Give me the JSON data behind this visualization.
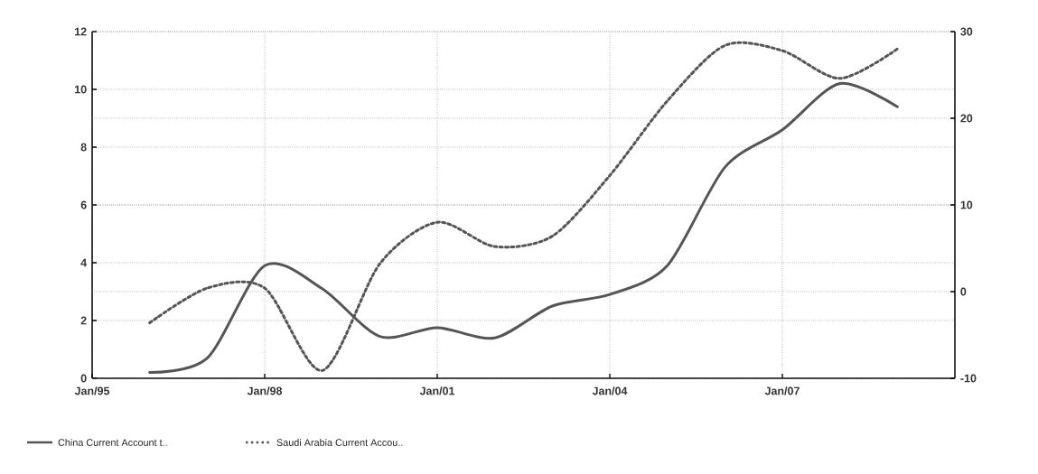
{
  "chart_data": {
    "type": "line",
    "x": [
      "1996-01",
      "1997-01",
      "1998-01",
      "1999-01",
      "2000-01",
      "2001-01",
      "2002-01",
      "2003-01",
      "2004-01",
      "2005-01",
      "2006-01",
      "2007-01",
      "2008-01",
      "2009-01"
    ],
    "series": [
      {
        "name": "China Current Account t..",
        "color": "#555555",
        "line_style": "solid",
        "values": [
          0.2,
          0.7,
          3.9,
          3.1,
          1.45,
          1.75,
          1.4,
          2.5,
          2.9,
          3.9,
          7.3,
          8.6,
          10.2,
          9.4
        ]
      },
      {
        "name": "Saudi Arabia Current Accou..",
        "color": "#555555",
        "line_style": "dotted",
        "axis": "y2",
        "values": [
          -3.6,
          0.4,
          0.4,
          -9.1,
          3.2,
          8.0,
          5.2,
          6.4,
          13.4,
          22.0,
          28.4,
          27.8,
          24.6,
          28.0
        ]
      }
    ],
    "xlim": [
      "1995-01",
      "2010-01"
    ],
    "xticks": [
      {
        "value": "1995-01",
        "label": "Jan/95"
      },
      {
        "value": "1998-01",
        "label": "Jan/98"
      },
      {
        "value": "2001-01",
        "label": "Jan/01"
      },
      {
        "value": "2004-01",
        "label": "Jan/04"
      },
      {
        "value": "2007-01",
        "label": "Jan/07"
      }
    ],
    "ylim": [
      0,
      12
    ],
    "yticks": [
      0,
      2,
      4,
      6,
      8,
      10,
      12
    ],
    "y2lim": [
      -10,
      30
    ],
    "y2ticks": [
      -10,
      0,
      10,
      20,
      30
    ],
    "grid": true,
    "legend": "bottom left",
    "marker": "none"
  }
}
